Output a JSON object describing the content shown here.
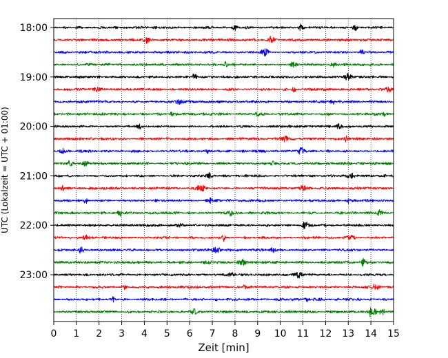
{
  "chart_data": {
    "type": "line",
    "title": "",
    "xlabel": "Zeit  [min]",
    "ylabel": "UTC (Lokalzeit = UTC + 01:00)",
    "xlim": [
      0,
      15
    ],
    "x_ticks": [
      0,
      1,
      2,
      3,
      4,
      5,
      6,
      7,
      8,
      9,
      10,
      11,
      12,
      13,
      14,
      15
    ],
    "x_tick_labels": [
      "0",
      "1",
      "2",
      "3",
      "4",
      "5",
      "6",
      "7",
      "8",
      "9",
      "10",
      "11",
      "12",
      "13",
      "14",
      "15"
    ],
    "y_tick_labels": [
      "18:00",
      "19:00",
      "20:00",
      "21:00",
      "22:00",
      "23:00"
    ],
    "trace_interval_minutes": 15,
    "start_time": "18:00",
    "end_time": "23:45",
    "grid": {
      "x_dotted": true
    },
    "series_colors": [
      "#000000",
      "#ff0000",
      "#0000ff",
      "#008000"
    ],
    "series": [
      {
        "start": "18:00",
        "color": "#000000",
        "events_min": [
          8.0,
          10.9,
          13.3
        ]
      },
      {
        "start": "18:15",
        "color": "#ff0000",
        "events_min": [
          9.6,
          4.1
        ]
      },
      {
        "start": "18:30",
        "color": "#0000ff",
        "events_min": [
          9.3,
          13.6
        ]
      },
      {
        "start": "18:45",
        "color": "#008000",
        "events_min": [
          7.6,
          10.6,
          12.4
        ]
      },
      {
        "start": "19:00",
        "color": "#000000",
        "events_min": [
          6.2,
          13.0
        ]
      },
      {
        "start": "19:15",
        "color": "#ff0000",
        "events_min": [
          1.9,
          10.6,
          14.7
        ]
      },
      {
        "start": "19:30",
        "color": "#0000ff",
        "events_min": [
          5.5,
          12.3
        ]
      },
      {
        "start": "19:45",
        "color": "#008000",
        "events_min": [
          5.2,
          9.0,
          14.6
        ]
      },
      {
        "start": "20:00",
        "color": "#000000",
        "events_min": [
          12.6,
          3.8
        ]
      },
      {
        "start": "20:15",
        "color": "#ff0000",
        "events_min": [
          10.2,
          12.9
        ]
      },
      {
        "start": "20:30",
        "color": "#0000ff",
        "events_min": [
          6.8,
          10.9,
          0.4
        ]
      },
      {
        "start": "20:45",
        "color": "#008000",
        "events_min": [
          0.7,
          1.4,
          9.7
        ]
      },
      {
        "start": "21:00",
        "color": "#000000",
        "events_min": [
          6.9,
          13.1
        ]
      },
      {
        "start": "21:15",
        "color": "#ff0000",
        "events_min": [
          6.5,
          0.4,
          11.0
        ]
      },
      {
        "start": "21:30",
        "color": "#0000ff",
        "events_min": [
          1.4,
          13.0,
          6.9
        ]
      },
      {
        "start": "21:45",
        "color": "#008000",
        "events_min": [
          7.8,
          14.4,
          2.9
        ]
      },
      {
        "start": "22:00",
        "color": "#000000",
        "events_min": [
          11.1,
          5.6
        ]
      },
      {
        "start": "22:15",
        "color": "#ff0000",
        "events_min": [
          7.5,
          13.1,
          1.4
        ]
      },
      {
        "start": "22:30",
        "color": "#0000ff",
        "events_min": [
          1.2,
          7.2,
          9.7
        ]
      },
      {
        "start": "22:45",
        "color": "#008000",
        "events_min": [
          6.8,
          8.3,
          13.7
        ]
      },
      {
        "start": "23:00",
        "color": "#000000",
        "events_min": [
          7.8,
          10.8
        ]
      },
      {
        "start": "23:15",
        "color": "#ff0000",
        "events_min": [
          3.1,
          8.4,
          14.2
        ]
      },
      {
        "start": "23:30",
        "color": "#0000ff",
        "events_min": [
          2.6,
          11.2
        ]
      },
      {
        "start": "23:45",
        "color": "#008000",
        "events_min": [
          14.1,
          14.5,
          6.2
        ]
      }
    ]
  }
}
